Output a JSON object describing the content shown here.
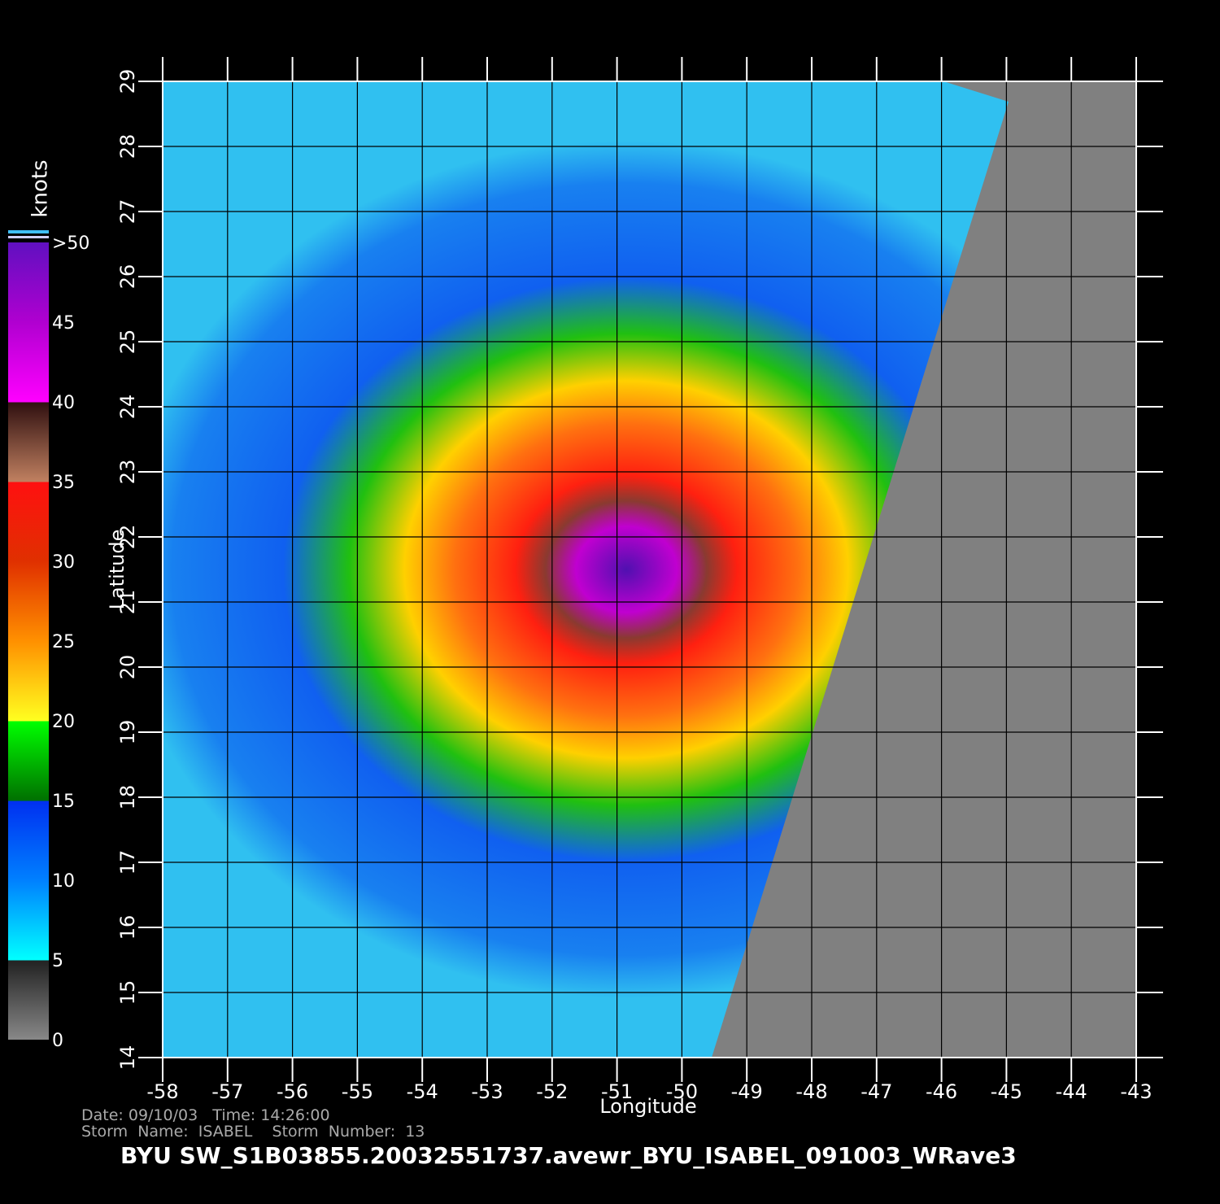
{
  "colorbar": {
    "unit": "knots",
    "ticks": [
      {
        "value": 50,
        "label": ">50"
      },
      45,
      40,
      35,
      30,
      25,
      20,
      15,
      10,
      5,
      0
    ]
  },
  "axes": {
    "x_label": "Longitude",
    "y_label": "Latitude",
    "xlim": [
      -58,
      -43
    ],
    "ylim": [
      14,
      29
    ],
    "x_ticks": [
      -58,
      -57,
      -56,
      -55,
      -54,
      -53,
      -52,
      -51,
      -50,
      -49,
      -48,
      -47,
      -46,
      -45,
      -44,
      -43
    ],
    "y_ticks": [
      14,
      15,
      16,
      17,
      18,
      19,
      20,
      21,
      22,
      23,
      24,
      25,
      26,
      27,
      28,
      29
    ]
  },
  "info": {
    "line1": "Date: 09/10/03   Time: 14:26:00",
    "line2": "Storm  Name:  ISABEL    Storm  Number:  13"
  },
  "footer": "BYU  SW_S1B03855.20032551737.avewr_BYU_ISABEL_091003_WRave3"
}
